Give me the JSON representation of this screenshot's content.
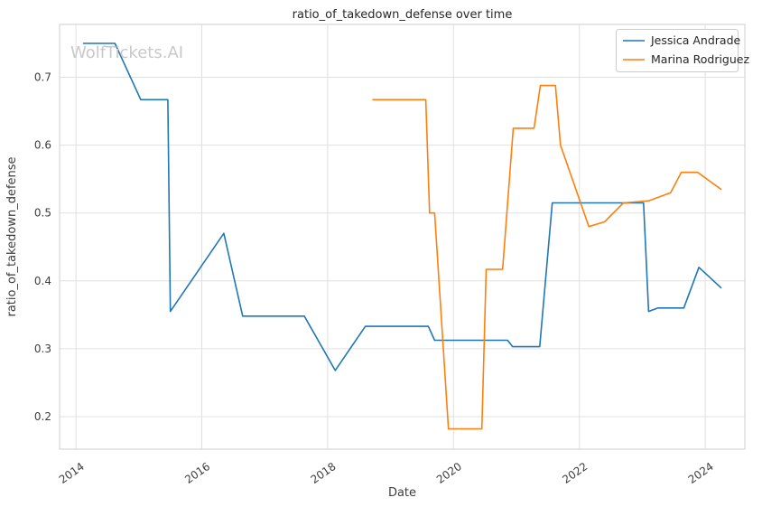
{
  "watermark": "WolfTickets.AI",
  "chart_data": {
    "type": "line",
    "title": "ratio_of_takedown_defense over time",
    "xlabel": "Date",
    "ylabel": "ratio_of_takedown_defense",
    "xlim": [
      2013.74,
      2024.63
    ],
    "ylim": [
      0.152,
      0.778
    ],
    "x_ticks": [
      2014,
      2016,
      2018,
      2020,
      2022,
      2024
    ],
    "y_ticks": [
      0.2,
      0.3,
      0.4,
      0.5,
      0.6,
      0.7
    ],
    "grid": true,
    "legend_position": "upper right",
    "series": [
      {
        "name": "Jessica Andrade",
        "color": "#1f77b4",
        "points": [
          [
            2014.12,
            0.75
          ],
          [
            2014.62,
            0.75
          ],
          [
            2015.03,
            0.667
          ],
          [
            2015.46,
            0.667
          ],
          [
            2015.5,
            0.355
          ],
          [
            2016.35,
            0.47
          ],
          [
            2016.65,
            0.348
          ],
          [
            2017.63,
            0.348
          ],
          [
            2018.12,
            0.268
          ],
          [
            2018.6,
            0.333
          ],
          [
            2019.6,
            0.333
          ],
          [
            2019.7,
            0.3125
          ],
          [
            2020.86,
            0.3125
          ],
          [
            2020.94,
            0.303
          ],
          [
            2021.37,
            0.303
          ],
          [
            2021.57,
            0.515
          ],
          [
            2023.02,
            0.515
          ],
          [
            2023.1,
            0.355
          ],
          [
            2023.25,
            0.36
          ],
          [
            2023.66,
            0.36
          ],
          [
            2023.9,
            0.42
          ],
          [
            2024.25,
            0.39
          ]
        ]
      },
      {
        "name": "Marina Rodriguez",
        "color": "#ff7f0e",
        "points": [
          [
            2018.72,
            0.667
          ],
          [
            2019.56,
            0.667
          ],
          [
            2019.62,
            0.5
          ],
          [
            2019.7,
            0.5
          ],
          [
            2019.92,
            0.182
          ],
          [
            2020.45,
            0.182
          ],
          [
            2020.52,
            0.417
          ],
          [
            2020.78,
            0.417
          ],
          [
            2020.95,
            0.625
          ],
          [
            2021.28,
            0.625
          ],
          [
            2021.38,
            0.688
          ],
          [
            2021.62,
            0.688
          ],
          [
            2021.7,
            0.6
          ],
          [
            2022.15,
            0.48
          ],
          [
            2022.4,
            0.487
          ],
          [
            2022.7,
            0.515
          ],
          [
            2023.1,
            0.518
          ],
          [
            2023.45,
            0.53
          ],
          [
            2023.62,
            0.56
          ],
          [
            2023.88,
            0.56
          ],
          [
            2024.25,
            0.535
          ]
        ]
      }
    ]
  }
}
